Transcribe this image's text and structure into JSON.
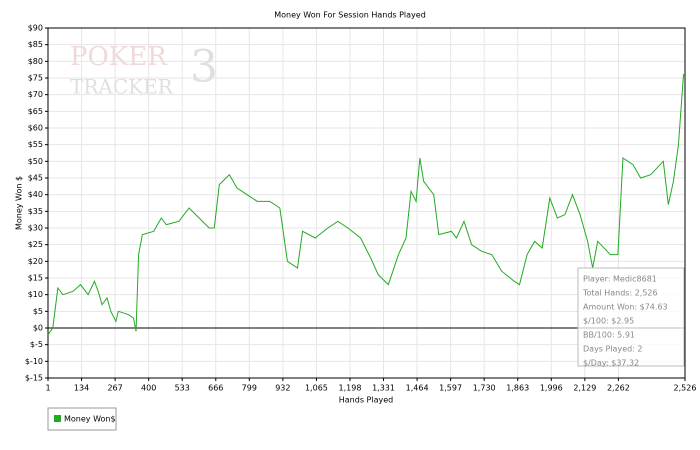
{
  "chart_data": {
    "type": "line",
    "title": "Money Won For Session Hands Played",
    "x_label": "Hands Played",
    "y_label": "Money Won $",
    "watermark": [
      "POKER",
      "TRACKER",
      "3"
    ],
    "info_box": [
      "Player: Medic8681",
      "Total Hands: 2,526",
      "Amount Won: $74.63",
      "$/100: $2.95",
      "BB/100: 5.91",
      "Days Played: 2",
      "$/Day: $37.32"
    ],
    "x": [
      1,
      20,
      40,
      60,
      100,
      130,
      160,
      185,
      200,
      215,
      235,
      250,
      270,
      280,
      320,
      340,
      350,
      360,
      375,
      420,
      450,
      470,
      520,
      560,
      600,
      640,
      660,
      680,
      720,
      750,
      790,
      830,
      880,
      920,
      950,
      990,
      1010,
      1060,
      1110,
      1150,
      1190,
      1240,
      1280,
      1310,
      1350,
      1390,
      1420,
      1440,
      1460,
      1475,
      1490,
      1530,
      1550,
      1600,
      1620,
      1650,
      1680,
      1720,
      1760,
      1800,
      1850,
      1870,
      1900,
      1930,
      1960,
      1990,
      2020,
      2050,
      2080,
      2110,
      2140,
      2160,
      2180,
      2230,
      2260,
      2280,
      2320,
      2350,
      2390,
      2440,
      2460,
      2480,
      2500,
      2520,
      2526
    ],
    "series": [
      {
        "name": "Money Won$",
        "color": "#22aa22",
        "values": [
          -2,
          0,
          12,
          10,
          11,
          13,
          10,
          14,
          11,
          7,
          9,
          5,
          2,
          5,
          4,
          3,
          -1,
          22,
          28,
          29,
          33,
          31,
          32,
          36,
          33,
          30,
          30,
          43,
          46,
          42,
          40,
          38,
          38,
          36,
          20,
          18,
          29,
          27,
          30,
          32,
          30,
          27,
          21,
          16,
          13,
          22,
          27,
          41,
          38,
          51,
          44,
          40,
          28,
          29,
          27,
          32,
          25,
          23,
          22,
          17,
          14,
          13,
          22,
          26,
          24,
          39,
          33,
          34,
          40,
          34,
          26,
          18,
          26,
          22,
          22,
          51,
          49,
          45,
          46,
          50,
          37,
          44,
          55,
          76,
          76
        ]
      }
    ],
    "xlim": [
      1,
      2526
    ],
    "xticks": [
      1,
      134,
      267,
      400,
      533,
      666,
      799,
      932,
      {
        "value": 1065,
        "label": "1,065"
      },
      {
        "value": 1198,
        "label": "1,198"
      },
      {
        "value": 1331,
        "label": "1,331"
      },
      {
        "value": 1464,
        "label": "1,464"
      },
      {
        "value": 1597,
        "label": "1,597"
      },
      {
        "value": 1730,
        "label": "1,730"
      },
      {
        "value": 1863,
        "label": "1,863"
      },
      {
        "value": 1996,
        "label": "1,996"
      },
      {
        "value": 2129,
        "label": "2,129"
      },
      {
        "value": 2262,
        "label": "2,262"
      },
      {
        "value": 2526,
        "label": "2,526"
      }
    ],
    "ylim": [
      -15,
      90
    ],
    "yticks": [
      {
        "value": -15,
        "label": "$-15"
      },
      {
        "value": -10,
        "label": "$-10"
      },
      {
        "value": -5,
        "label": "$-5"
      },
      {
        "value": 0,
        "label": "$0"
      },
      {
        "value": 5,
        "label": "$5"
      },
      {
        "value": 10,
        "label": "$10"
      },
      {
        "value": 15,
        "label": "$15"
      },
      {
        "value": 20,
        "label": "$20"
      },
      {
        "value": 25,
        "label": "$25"
      },
      {
        "value": 30,
        "label": "$30"
      },
      {
        "value": 35,
        "label": "$35"
      },
      {
        "value": 40,
        "label": "$40"
      },
      {
        "value": 45,
        "label": "$45"
      },
      {
        "value": 50,
        "label": "$50"
      },
      {
        "value": 55,
        "label": "$55"
      },
      {
        "value": 60,
        "label": "$60"
      },
      {
        "value": 65,
        "label": "$65"
      },
      {
        "value": 70,
        "label": "$70"
      },
      {
        "value": 75,
        "label": "$75"
      },
      {
        "value": 80,
        "label": "$80"
      },
      {
        "value": 85,
        "label": "$85"
      },
      {
        "value": 90,
        "label": "$90"
      }
    ],
    "grid": true
  }
}
